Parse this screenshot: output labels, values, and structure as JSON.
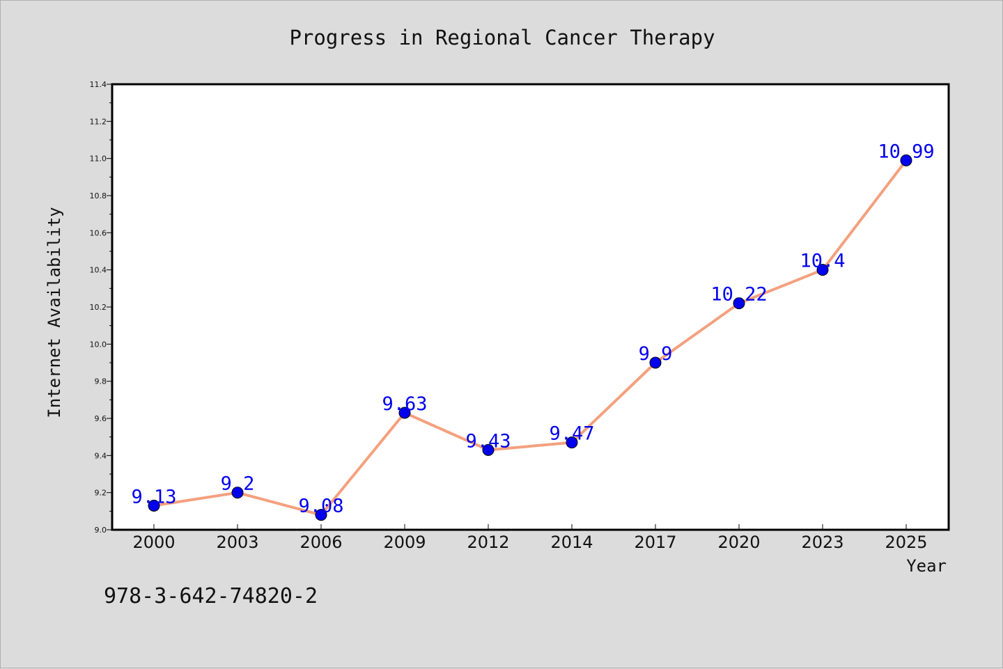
{
  "chart_data": {
    "type": "line",
    "title": "Progress in Regional Cancer Therapy",
    "xlabel": "Year",
    "ylabel": "Internet Availability",
    "categories": [
      "2000",
      "2003",
      "2006",
      "2009",
      "2012",
      "2014",
      "2017",
      "2020",
      "2023",
      "2025"
    ],
    "series": [
      {
        "values": [
          9.13,
          9.2,
          9.08,
          9.63,
          9.43,
          9.47,
          9.9,
          10.22,
          10.4,
          10.99
        ],
        "data_labels": [
          "9.13",
          "9.2",
          "9.08",
          "9.63",
          "9.43",
          "9.47",
          "9.9",
          "10.22",
          "10.4",
          "10.99"
        ]
      }
    ],
    "ylim": [
      9.0,
      11.4
    ],
    "yticks": [
      "9.0",
      "9.2",
      "9.4",
      "9.6",
      "9.8",
      "10.0",
      "10.2",
      "10.4",
      "10.6",
      "10.8",
      "11.0",
      "11.2",
      "11.4"
    ],
    "grid": false,
    "line_color": "#f4a07e",
    "marker_color": "#0000ee",
    "label_color": "#0000ee",
    "background_color": "#dcdcdc",
    "plot_background": "#ffffff"
  },
  "annotation": "978-3-642-74820-2"
}
